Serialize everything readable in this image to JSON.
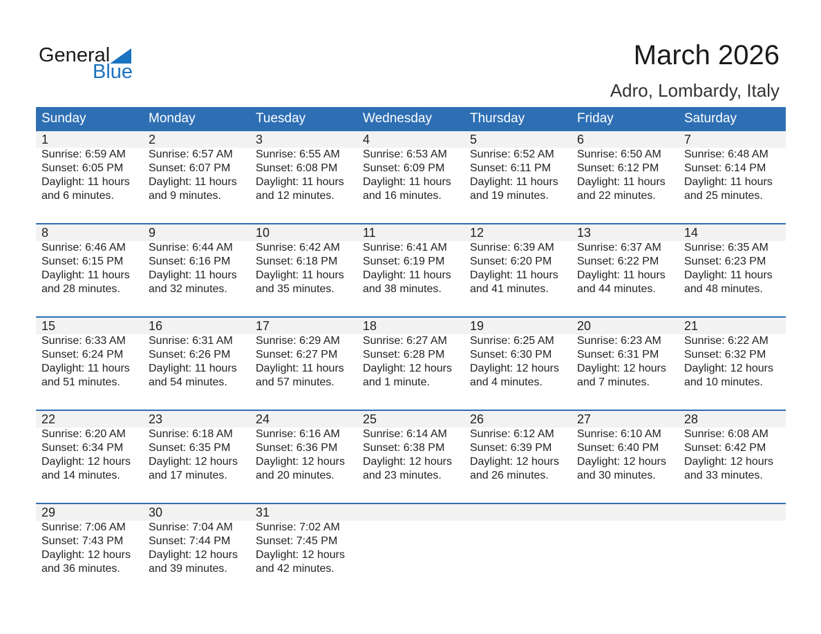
{
  "logo": {
    "line1": "General",
    "line2": "Blue"
  },
  "title": "March 2026",
  "location": "Adro, Lombardy, Italy",
  "days": [
    "Sunday",
    "Monday",
    "Tuesday",
    "Wednesday",
    "Thursday",
    "Friday",
    "Saturday"
  ],
  "colors": {
    "header": "#2e6fb4",
    "day_row": "#f2f2f2",
    "logo_blue": "#1a73c0"
  },
  "cells": [
    {
      "day": "1",
      "sunrise": "Sunrise: 6:59 AM",
      "sunset": "Sunset: 6:05 PM",
      "daylight1": "Daylight: 11 hours",
      "daylight2": "and 6 minutes."
    },
    {
      "day": "2",
      "sunrise": "Sunrise: 6:57 AM",
      "sunset": "Sunset: 6:07 PM",
      "daylight1": "Daylight: 11 hours",
      "daylight2": "and 9 minutes."
    },
    {
      "day": "3",
      "sunrise": "Sunrise: 6:55 AM",
      "sunset": "Sunset: 6:08 PM",
      "daylight1": "Daylight: 11 hours",
      "daylight2": "and 12 minutes."
    },
    {
      "day": "4",
      "sunrise": "Sunrise: 6:53 AM",
      "sunset": "Sunset: 6:09 PM",
      "daylight1": "Daylight: 11 hours",
      "daylight2": "and 16 minutes."
    },
    {
      "day": "5",
      "sunrise": "Sunrise: 6:52 AM",
      "sunset": "Sunset: 6:11 PM",
      "daylight1": "Daylight: 11 hours",
      "daylight2": "and 19 minutes."
    },
    {
      "day": "6",
      "sunrise": "Sunrise: 6:50 AM",
      "sunset": "Sunset: 6:12 PM",
      "daylight1": "Daylight: 11 hours",
      "daylight2": "and 22 minutes."
    },
    {
      "day": "7",
      "sunrise": "Sunrise: 6:48 AM",
      "sunset": "Sunset: 6:14 PM",
      "daylight1": "Daylight: 11 hours",
      "daylight2": "and 25 minutes."
    },
    {
      "day": "8",
      "sunrise": "Sunrise: 6:46 AM",
      "sunset": "Sunset: 6:15 PM",
      "daylight1": "Daylight: 11 hours",
      "daylight2": "and 28 minutes."
    },
    {
      "day": "9",
      "sunrise": "Sunrise: 6:44 AM",
      "sunset": "Sunset: 6:16 PM",
      "daylight1": "Daylight: 11 hours",
      "daylight2": "and 32 minutes."
    },
    {
      "day": "10",
      "sunrise": "Sunrise: 6:42 AM",
      "sunset": "Sunset: 6:18 PM",
      "daylight1": "Daylight: 11 hours",
      "daylight2": "and 35 minutes."
    },
    {
      "day": "11",
      "sunrise": "Sunrise: 6:41 AM",
      "sunset": "Sunset: 6:19 PM",
      "daylight1": "Daylight: 11 hours",
      "daylight2": "and 38 minutes."
    },
    {
      "day": "12",
      "sunrise": "Sunrise: 6:39 AM",
      "sunset": "Sunset: 6:20 PM",
      "daylight1": "Daylight: 11 hours",
      "daylight2": "and 41 minutes."
    },
    {
      "day": "13",
      "sunrise": "Sunrise: 6:37 AM",
      "sunset": "Sunset: 6:22 PM",
      "daylight1": "Daylight: 11 hours",
      "daylight2": "and 44 minutes."
    },
    {
      "day": "14",
      "sunrise": "Sunrise: 6:35 AM",
      "sunset": "Sunset: 6:23 PM",
      "daylight1": "Daylight: 11 hours",
      "daylight2": "and 48 minutes."
    },
    {
      "day": "15",
      "sunrise": "Sunrise: 6:33 AM",
      "sunset": "Sunset: 6:24 PM",
      "daylight1": "Daylight: 11 hours",
      "daylight2": "and 51 minutes."
    },
    {
      "day": "16",
      "sunrise": "Sunrise: 6:31 AM",
      "sunset": "Sunset: 6:26 PM",
      "daylight1": "Daylight: 11 hours",
      "daylight2": "and 54 minutes."
    },
    {
      "day": "17",
      "sunrise": "Sunrise: 6:29 AM",
      "sunset": "Sunset: 6:27 PM",
      "daylight1": "Daylight: 11 hours",
      "daylight2": "and 57 minutes."
    },
    {
      "day": "18",
      "sunrise": "Sunrise: 6:27 AM",
      "sunset": "Sunset: 6:28 PM",
      "daylight1": "Daylight: 12 hours",
      "daylight2": "and 1 minute."
    },
    {
      "day": "19",
      "sunrise": "Sunrise: 6:25 AM",
      "sunset": "Sunset: 6:30 PM",
      "daylight1": "Daylight: 12 hours",
      "daylight2": "and 4 minutes."
    },
    {
      "day": "20",
      "sunrise": "Sunrise: 6:23 AM",
      "sunset": "Sunset: 6:31 PM",
      "daylight1": "Daylight: 12 hours",
      "daylight2": "and 7 minutes."
    },
    {
      "day": "21",
      "sunrise": "Sunrise: 6:22 AM",
      "sunset": "Sunset: 6:32 PM",
      "daylight1": "Daylight: 12 hours",
      "daylight2": "and 10 minutes."
    },
    {
      "day": "22",
      "sunrise": "Sunrise: 6:20 AM",
      "sunset": "Sunset: 6:34 PM",
      "daylight1": "Daylight: 12 hours",
      "daylight2": "and 14 minutes."
    },
    {
      "day": "23",
      "sunrise": "Sunrise: 6:18 AM",
      "sunset": "Sunset: 6:35 PM",
      "daylight1": "Daylight: 12 hours",
      "daylight2": "and 17 minutes."
    },
    {
      "day": "24",
      "sunrise": "Sunrise: 6:16 AM",
      "sunset": "Sunset: 6:36 PM",
      "daylight1": "Daylight: 12 hours",
      "daylight2": "and 20 minutes."
    },
    {
      "day": "25",
      "sunrise": "Sunrise: 6:14 AM",
      "sunset": "Sunset: 6:38 PM",
      "daylight1": "Daylight: 12 hours",
      "daylight2": "and 23 minutes."
    },
    {
      "day": "26",
      "sunrise": "Sunrise: 6:12 AM",
      "sunset": "Sunset: 6:39 PM",
      "daylight1": "Daylight: 12 hours",
      "daylight2": "and 26 minutes."
    },
    {
      "day": "27",
      "sunrise": "Sunrise: 6:10 AM",
      "sunset": "Sunset: 6:40 PM",
      "daylight1": "Daylight: 12 hours",
      "daylight2": "and 30 minutes."
    },
    {
      "day": "28",
      "sunrise": "Sunrise: 6:08 AM",
      "sunset": "Sunset: 6:42 PM",
      "daylight1": "Daylight: 12 hours",
      "daylight2": "and 33 minutes."
    },
    {
      "day": "29",
      "sunrise": "Sunrise: 7:06 AM",
      "sunset": "Sunset: 7:43 PM",
      "daylight1": "Daylight: 12 hours",
      "daylight2": "and 36 minutes."
    },
    {
      "day": "30",
      "sunrise": "Sunrise: 7:04 AM",
      "sunset": "Sunset: 7:44 PM",
      "daylight1": "Daylight: 12 hours",
      "daylight2": "and 39 minutes."
    },
    {
      "day": "31",
      "sunrise": "Sunrise: 7:02 AM",
      "sunset": "Sunset: 7:45 PM",
      "daylight1": "Daylight: 12 hours",
      "daylight2": "and 42 minutes."
    }
  ]
}
